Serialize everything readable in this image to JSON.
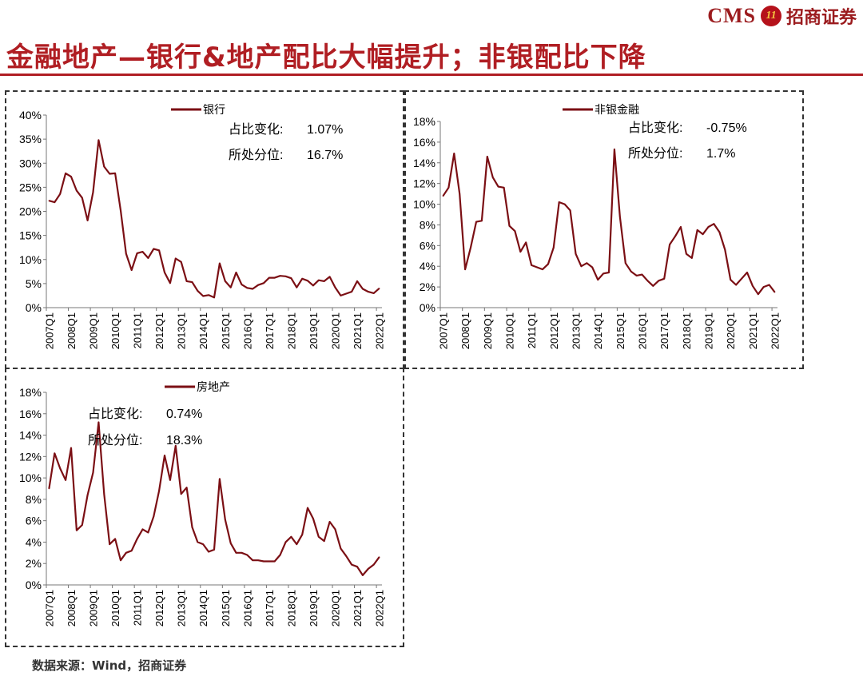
{
  "header": {
    "brand_cms": "CMS",
    "brand_logo_text": "11",
    "brand_name": "招商证券",
    "title": "金融地产—银行&地产配比大幅提升；非银配比下降"
  },
  "footer": {
    "source": "数据来源：Wind，招商证券"
  },
  "colors": {
    "series": "#7b0f14",
    "title": "#b01e23",
    "brand": "#9b1b1e"
  },
  "chart_data": [
    {
      "id": "bank",
      "type": "line",
      "legend": "银行",
      "stats": [
        {
          "label": "占比变化:",
          "value": "1.07%"
        },
        {
          "label": "所处分位:",
          "value": "16.7%"
        }
      ],
      "ylim": [
        0,
        40
      ],
      "yticks": [
        0,
        5,
        10,
        15,
        20,
        25,
        30,
        35,
        40
      ],
      "ytick_labels": [
        "0%",
        "5%",
        "10%",
        "15%",
        "20%",
        "25%",
        "30%",
        "35%",
        "40%"
      ],
      "xtick_labels": [
        "2007Q1",
        "2008Q1",
        "2009Q1",
        "2010Q1",
        "2011Q1",
        "2012Q1",
        "2013Q1",
        "2014Q1",
        "2015Q1",
        "2016Q1",
        "2017Q1",
        "2018Q1",
        "2019Q1",
        "2020Q1",
        "2021Q1",
        "2022Q1"
      ],
      "values": [
        22.2,
        21.9,
        23.6,
        27.9,
        27.2,
        24.3,
        22.8,
        18.1,
        24.0,
        34.8,
        29.3,
        27.8,
        27.9,
        20.2,
        11.2,
        7.8,
        11.3,
        11.6,
        10.3,
        12.2,
        11.9,
        7.3,
        5.1,
        10.2,
        9.5,
        5.5,
        5.3,
        3.5,
        2.4,
        2.6,
        2.1,
        9.2,
        5.5,
        4.2,
        7.3,
        4.8,
        4.1,
        3.9,
        4.7,
        5.1,
        6.2,
        6.2,
        6.6,
        6.5,
        6.1,
        4.2,
        6.0,
        5.6,
        4.6,
        5.7,
        5.5,
        6.4,
        4.2,
        2.5,
        2.9,
        3.3,
        5.5,
        3.9,
        3.3,
        3.0,
        4.0
      ]
    },
    {
      "id": "nonbank",
      "type": "line",
      "legend": "非银金融",
      "stats": [
        {
          "label": "占比变化:",
          "value": "-0.75%"
        },
        {
          "label": "所处分位:",
          "value": "1.7%"
        }
      ],
      "ylim": [
        0,
        18
      ],
      "yticks": [
        0,
        2,
        4,
        6,
        8,
        10,
        12,
        14,
        16,
        18
      ],
      "ytick_labels": [
        "0%",
        "2%",
        "4%",
        "6%",
        "8%",
        "10%",
        "12%",
        "14%",
        "16%",
        "18%"
      ],
      "xtick_labels": [
        "2007Q1",
        "2008Q1",
        "2009Q1",
        "2010Q1",
        "2011Q1",
        "2012Q1",
        "2013Q1",
        "2014Q1",
        "2015Q1",
        "2016Q1",
        "2017Q1",
        "2018Q1",
        "2019Q1",
        "2020Q1",
        "2021Q1",
        "2022Q1"
      ],
      "values": [
        10.8,
        11.6,
        14.9,
        11.0,
        3.7,
        5.8,
        8.3,
        8.4,
        14.6,
        12.6,
        11.7,
        11.6,
        7.9,
        7.4,
        5.4,
        6.3,
        4.1,
        3.9,
        3.7,
        4.2,
        5.8,
        10.2,
        10.0,
        9.4,
        5.2,
        4.0,
        4.3,
        3.9,
        2.7,
        3.3,
        3.4,
        15.3,
        8.8,
        4.3,
        3.5,
        3.1,
        3.2,
        2.6,
        2.1,
        2.6,
        2.8,
        6.1,
        6.9,
        7.8,
        5.2,
        4.8,
        7.5,
        7.1,
        7.8,
        8.1,
        7.3,
        5.6,
        2.7,
        2.2,
        2.8,
        3.4,
        2.1,
        1.3,
        2.0,
        2.2,
        1.5
      ]
    },
    {
      "id": "realestate",
      "type": "line",
      "legend": "房地产",
      "stats": [
        {
          "label": "占比变化:",
          "value": "0.74%"
        },
        {
          "label": "所处分位:",
          "value": "18.3%"
        }
      ],
      "ylim": [
        0,
        18
      ],
      "yticks": [
        0,
        2,
        4,
        6,
        8,
        10,
        12,
        14,
        16,
        18
      ],
      "ytick_labels": [
        "0%",
        "2%",
        "4%",
        "6%",
        "8%",
        "10%",
        "12%",
        "14%",
        "16%",
        "18%"
      ],
      "xtick_labels": [
        "2007Q1",
        "2008Q1",
        "2009Q1",
        "2010Q1",
        "2011Q1",
        "2012Q1",
        "2013Q1",
        "2014Q1",
        "2015Q1",
        "2016Q1",
        "2017Q1",
        "2018Q1",
        "2019Q1",
        "2020Q1",
        "2021Q1",
        "2022Q1"
      ],
      "values": [
        9.0,
        12.3,
        10.9,
        9.8,
        12.8,
        5.1,
        5.6,
        8.4,
        10.5,
        15.2,
        8.5,
        3.8,
        4.3,
        2.3,
        3.0,
        3.2,
        4.3,
        5.2,
        4.9,
        6.4,
        8.8,
        12.1,
        9.8,
        13.0,
        8.5,
        9.1,
        5.4,
        4.0,
        3.8,
        3.1,
        3.3,
        9.9,
        6.1,
        3.9,
        3.0,
        3.0,
        2.8,
        2.3,
        2.3,
        2.2,
        2.2,
        2.2,
        2.8,
        4.0,
        4.5,
        3.8,
        4.7,
        7.2,
        6.2,
        4.5,
        4.1,
        5.9,
        5.2,
        3.4,
        2.7,
        1.9,
        1.7,
        0.9,
        1.5,
        1.9,
        2.6
      ]
    }
  ]
}
